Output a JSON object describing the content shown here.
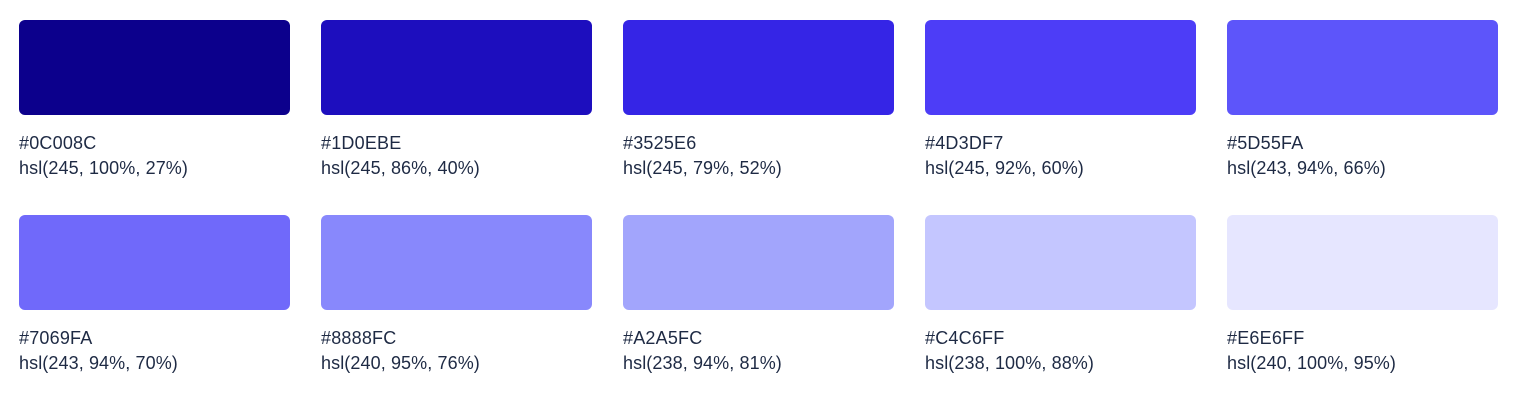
{
  "swatches": [
    {
      "hex": "#0C008C",
      "hsl": "hsl(245, 100%, 27%)",
      "color": "#0C008C"
    },
    {
      "hex": "#1D0EBE",
      "hsl": "hsl(245, 86%, 40%)",
      "color": "#1D0EBE"
    },
    {
      "hex": "#3525E6",
      "hsl": "hsl(245, 79%, 52%)",
      "color": "#3525E6"
    },
    {
      "hex": "#4D3DF7",
      "hsl": "hsl(245, 92%, 60%)",
      "color": "#4D3DF7"
    },
    {
      "hex": "#5D55FA",
      "hsl": "hsl(243, 94%, 66%)",
      "color": "#5D55FA"
    },
    {
      "hex": "#7069FA",
      "hsl": "hsl(243, 94%, 70%)",
      "color": "#7069FA"
    },
    {
      "hex": "#8888FC",
      "hsl": "hsl(240, 95%, 76%)",
      "color": "#8888FC"
    },
    {
      "hex": "#A2A5FC",
      "hsl": "hsl(238, 94%, 81%)",
      "color": "#A2A5FC"
    },
    {
      "hex": "#C4C6FF",
      "hsl": "hsl(238, 100%, 88%)",
      "color": "#C4C6FF"
    },
    {
      "hex": "#E6E6FF",
      "hsl": "hsl(240, 100%, 95%)",
      "color": "#E6E6FF"
    }
  ]
}
